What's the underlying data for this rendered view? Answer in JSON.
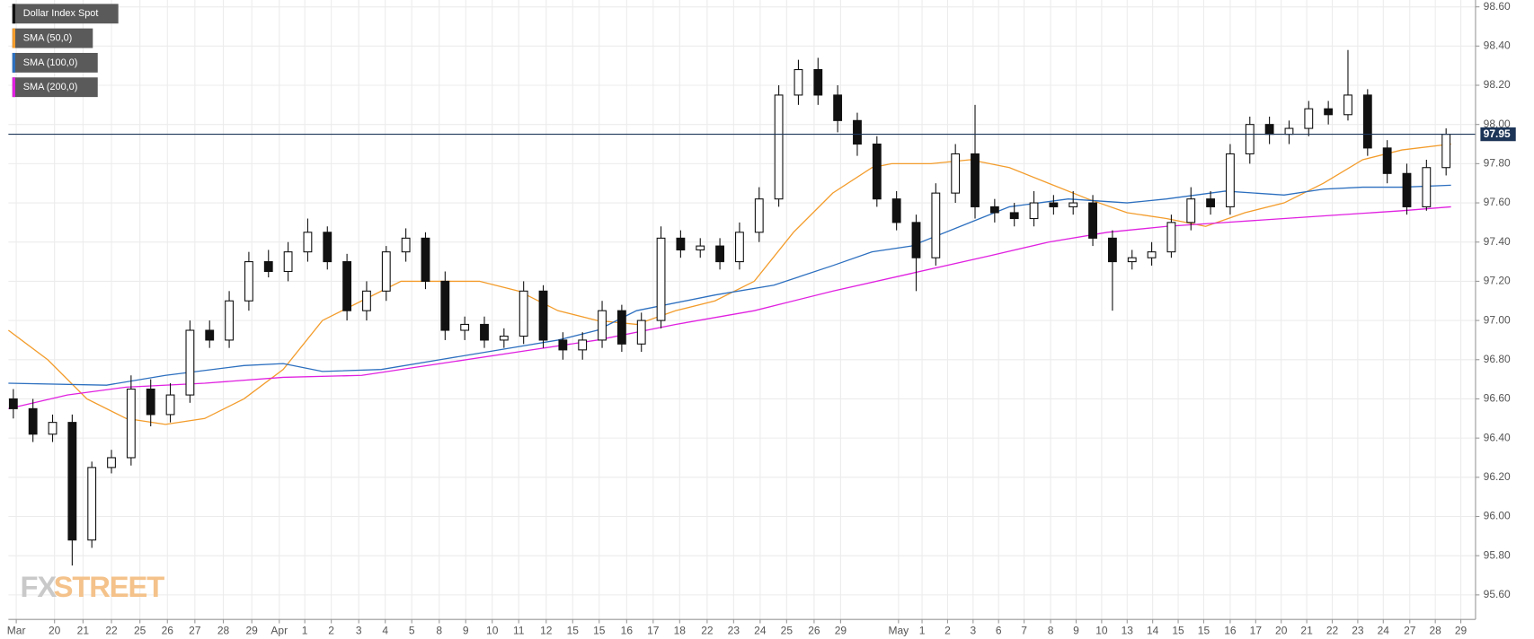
{
  "chart_data": {
    "type": "candlestick",
    "legend": "top-left",
    "grid": true,
    "xlim": [
      0,
      1495
    ],
    "ylim": [
      95.475,
      98.635
    ],
    "yticks": [
      {
        "value": 95.6,
        "label": "95.60"
      },
      {
        "value": 95.8,
        "label": "95.80"
      },
      {
        "value": 96.0,
        "label": "96.00"
      },
      {
        "value": 96.2,
        "label": "96.20"
      },
      {
        "value": 96.4,
        "label": "96.40"
      },
      {
        "value": 96.6,
        "label": "96.60"
      },
      {
        "value": 96.8,
        "label": "96.80"
      },
      {
        "value": 97.0,
        "label": "97.00"
      },
      {
        "value": 97.2,
        "label": "97.20"
      },
      {
        "value": 97.4,
        "label": "97.40"
      },
      {
        "value": 97.6,
        "label": "97.60"
      },
      {
        "value": 97.8,
        "label": "97.80"
      },
      {
        "value": 98.0,
        "label": "98.00"
      },
      {
        "value": 98.2,
        "label": "98.20"
      },
      {
        "value": 98.4,
        "label": "98.40"
      },
      {
        "value": 98.6,
        "label": "98.60"
      }
    ],
    "xticks": [
      {
        "value": 8,
        "label": "Mar"
      },
      {
        "value": 47,
        "label": "20"
      },
      {
        "value": 76,
        "label": "21"
      },
      {
        "value": 105,
        "label": "22"
      },
      {
        "value": 134,
        "label": "25"
      },
      {
        "value": 162,
        "label": "26"
      },
      {
        "value": 190,
        "label": "27"
      },
      {
        "value": 219,
        "label": "28"
      },
      {
        "value": 248,
        "label": "29"
      },
      {
        "value": 276,
        "label": "Apr"
      },
      {
        "value": 302,
        "label": "1"
      },
      {
        "value": 329,
        "label": "2"
      },
      {
        "value": 357,
        "label": "3"
      },
      {
        "value": 384,
        "label": "4"
      },
      {
        "value": 411,
        "label": "5"
      },
      {
        "value": 439,
        "label": "8"
      },
      {
        "value": 466,
        "label": "9"
      },
      {
        "value": 493,
        "label": "10"
      },
      {
        "value": 520,
        "label": "11"
      },
      {
        "value": 548,
        "label": "12"
      },
      {
        "value": 575,
        "label": "15"
      },
      {
        "value": 602,
        "label": "15"
      },
      {
        "value": 630,
        "label": "16"
      },
      {
        "value": 657,
        "label": "17"
      },
      {
        "value": 684,
        "label": "18"
      },
      {
        "value": 712,
        "label": "22"
      },
      {
        "value": 739,
        "label": "23"
      },
      {
        "value": 766,
        "label": "24"
      },
      {
        "value": 793,
        "label": "25"
      },
      {
        "value": 821,
        "label": "26"
      },
      {
        "value": 848,
        "label": "29"
      },
      {
        "value": 907,
        "label": "May"
      },
      {
        "value": 931,
        "label": "1"
      },
      {
        "value": 957,
        "label": "2"
      },
      {
        "value": 983,
        "label": "3"
      },
      {
        "value": 1009,
        "label": "6"
      },
      {
        "value": 1035,
        "label": "7"
      },
      {
        "value": 1062,
        "label": "8"
      },
      {
        "value": 1088,
        "label": "9"
      },
      {
        "value": 1114,
        "label": "10"
      },
      {
        "value": 1140,
        "label": "13"
      },
      {
        "value": 1166,
        "label": "14"
      },
      {
        "value": 1192,
        "label": "15"
      },
      {
        "value": 1218,
        "label": "15"
      },
      {
        "value": 1245,
        "label": "16"
      },
      {
        "value": 1271,
        "label": "17"
      },
      {
        "value": 1297,
        "label": "20"
      },
      {
        "value": 1323,
        "label": "21"
      },
      {
        "value": 1349,
        "label": "22"
      },
      {
        "value": 1375,
        "label": "23"
      },
      {
        "value": 1401,
        "label": "24"
      },
      {
        "value": 1428,
        "label": "27"
      },
      {
        "value": 1454,
        "label": "28"
      },
      {
        "value": 1480,
        "label": "29"
      }
    ],
    "candles": {
      "name": "Dollar Index Spot",
      "color": "#111111",
      "x": [
        5,
        25,
        45,
        65,
        85,
        105,
        125,
        145,
        165,
        185,
        205,
        225,
        245,
        265,
        285,
        305,
        325,
        345,
        365,
        385,
        405,
        425,
        445,
        465,
        485,
        505,
        525,
        545,
        565,
        585,
        605,
        625,
        645,
        665,
        685,
        705,
        725,
        745,
        765,
        785,
        805,
        825,
        845,
        865,
        885,
        905,
        925,
        945,
        965,
        985,
        1005,
        1025,
        1045,
        1065,
        1085,
        1105,
        1125,
        1145,
        1165,
        1185,
        1205,
        1225,
        1245,
        1265,
        1285,
        1305,
        1325,
        1345,
        1365,
        1385,
        1405,
        1425,
        1445,
        1465
      ],
      "open": [
        96.6,
        96.55,
        96.42,
        96.48,
        95.88,
        96.25,
        96.3,
        96.65,
        96.52,
        96.62,
        96.95,
        96.9,
        97.1,
        97.3,
        97.25,
        97.35,
        97.45,
        97.3,
        97.05,
        97.15,
        97.35,
        97.42,
        97.2,
        96.95,
        96.98,
        96.9,
        96.92,
        97.15,
        96.9,
        96.85,
        96.9,
        97.05,
        96.88,
        97.0,
        97.42,
        97.36,
        97.38,
        97.3,
        97.45,
        97.62,
        98.15,
        98.28,
        98.15,
        98.02,
        97.9,
        97.62,
        97.5,
        97.32,
        97.65,
        97.85,
        97.58,
        97.55,
        97.52,
        97.6,
        97.58,
        97.6,
        97.42,
        97.3,
        97.32,
        97.35,
        97.5,
        97.62,
        97.58,
        97.85,
        98.0,
        97.95,
        97.98,
        98.08,
        98.05,
        98.15,
        97.88,
        97.75,
        97.58,
        97.78
      ],
      "high": [
        96.65,
        96.6,
        96.52,
        96.52,
        96.28,
        96.34,
        96.72,
        96.7,
        96.68,
        97.0,
        97.0,
        97.15,
        97.35,
        97.36,
        97.4,
        97.52,
        97.48,
        97.34,
        97.2,
        97.38,
        97.47,
        97.45,
        97.25,
        97.02,
        97.02,
        96.96,
        97.2,
        97.18,
        96.94,
        96.94,
        97.1,
        97.08,
        97.04,
        97.48,
        97.46,
        97.42,
        97.42,
        97.5,
        97.68,
        98.2,
        98.33,
        98.34,
        98.2,
        98.06,
        97.94,
        97.66,
        97.54,
        97.7,
        97.9,
        98.1,
        97.62,
        97.6,
        97.66,
        97.64,
        97.66,
        97.64,
        97.46,
        97.36,
        97.4,
        97.54,
        97.68,
        97.66,
        97.9,
        98.04,
        98.04,
        98.02,
        98.12,
        98.12,
        98.38,
        98.18,
        97.92,
        97.8,
        97.82,
        97.98
      ],
      "low": [
        96.5,
        96.38,
        96.38,
        95.75,
        95.84,
        96.22,
        96.26,
        96.46,
        96.48,
        96.58,
        96.86,
        96.86,
        97.05,
        97.22,
        97.2,
        97.3,
        97.26,
        97.0,
        97.0,
        97.1,
        97.3,
        97.16,
        96.9,
        96.9,
        96.86,
        96.86,
        96.88,
        96.86,
        96.8,
        96.8,
        96.86,
        96.84,
        96.84,
        96.96,
        97.32,
        97.32,
        97.26,
        97.26,
        97.4,
        97.58,
        98.1,
        98.1,
        97.96,
        97.84,
        97.58,
        97.46,
        97.15,
        97.28,
        97.6,
        97.52,
        97.5,
        97.48,
        97.48,
        97.54,
        97.54,
        97.38,
        97.05,
        97.26,
        97.28,
        97.32,
        97.46,
        97.54,
        97.54,
        97.8,
        97.9,
        97.9,
        97.94,
        98.0,
        98.02,
        97.84,
        97.7,
        97.54,
        97.56,
        97.74
      ],
      "close": [
        96.55,
        96.42,
        96.48,
        95.88,
        96.25,
        96.3,
        96.65,
        96.52,
        96.62,
        96.95,
        96.9,
        97.1,
        97.3,
        97.25,
        97.35,
        97.45,
        97.3,
        97.05,
        97.15,
        97.35,
        97.42,
        97.2,
        96.95,
        96.98,
        96.9,
        96.92,
        97.15,
        96.9,
        96.85,
        96.9,
        97.05,
        96.88,
        97.0,
        97.42,
        97.36,
        97.38,
        97.3,
        97.45,
        97.62,
        98.15,
        98.28,
        98.15,
        98.02,
        97.9,
        97.62,
        97.5,
        97.32,
        97.65,
        97.85,
        97.58,
        97.55,
        97.52,
        97.6,
        97.58,
        97.6,
        97.42,
        97.3,
        97.32,
        97.35,
        97.5,
        97.62,
        97.58,
        97.85,
        98.0,
        97.95,
        97.98,
        98.08,
        98.05,
        98.15,
        97.88,
        97.75,
        97.58,
        97.78,
        97.95
      ]
    },
    "series": [
      {
        "name": "SMA (50,0)",
        "color": "#f39c2b",
        "x": [
          0,
          40,
          80,
          120,
          160,
          200,
          240,
          280,
          320,
          360,
          400,
          440,
          480,
          520,
          560,
          600,
          640,
          680,
          720,
          760,
          800,
          840,
          880,
          900,
          940,
          980,
          1020,
          1060,
          1100,
          1140,
          1180,
          1220,
          1260,
          1300,
          1340,
          1380,
          1420,
          1470
        ],
        "values": [
          96.95,
          96.8,
          96.6,
          96.5,
          96.47,
          96.5,
          96.6,
          96.75,
          97.0,
          97.1,
          97.2,
          97.2,
          97.2,
          97.15,
          97.05,
          97.0,
          96.98,
          97.05,
          97.1,
          97.2,
          97.45,
          97.65,
          97.78,
          97.8,
          97.8,
          97.82,
          97.78,
          97.7,
          97.62,
          97.55,
          97.52,
          97.48,
          97.55,
          97.6,
          97.7,
          97.82,
          97.87,
          97.9
        ]
      },
      {
        "name": "SMA (100,0)",
        "color": "#2c6fbf",
        "x": [
          0,
          100,
          160,
          240,
          280,
          320,
          380,
          440,
          500,
          560,
          600,
          640,
          720,
          780,
          840,
          880,
          920,
          980,
          1020,
          1080,
          1140,
          1180,
          1240,
          1300,
          1340,
          1380,
          1420,
          1470
        ],
        "values": [
          96.68,
          96.67,
          96.72,
          96.77,
          96.78,
          96.74,
          96.75,
          96.8,
          96.85,
          96.9,
          96.95,
          97.05,
          97.13,
          97.18,
          97.28,
          97.35,
          97.38,
          97.5,
          97.58,
          97.62,
          97.6,
          97.62,
          97.66,
          97.64,
          97.67,
          97.68,
          97.68,
          97.69
        ]
      },
      {
        "name": "SMA (200,0)",
        "color": "#e020e0",
        "x": [
          0,
          60,
          120,
          200,
          280,
          360,
          440,
          520,
          600,
          680,
          760,
          840,
          920,
          1000,
          1060,
          1120,
          1180,
          1240,
          1300,
          1360,
          1420,
          1470
        ],
        "values": [
          96.55,
          96.62,
          96.66,
          96.68,
          96.71,
          96.72,
          96.78,
          96.84,
          96.9,
          96.98,
          97.05,
          97.15,
          97.24,
          97.33,
          97.4,
          97.45,
          97.48,
          97.5,
          97.52,
          97.54,
          97.56,
          97.58
        ]
      }
    ],
    "last_price": 97.95,
    "last_price_color": "#1d3557",
    "watermark": [
      "FX",
      "STREET"
    ]
  }
}
